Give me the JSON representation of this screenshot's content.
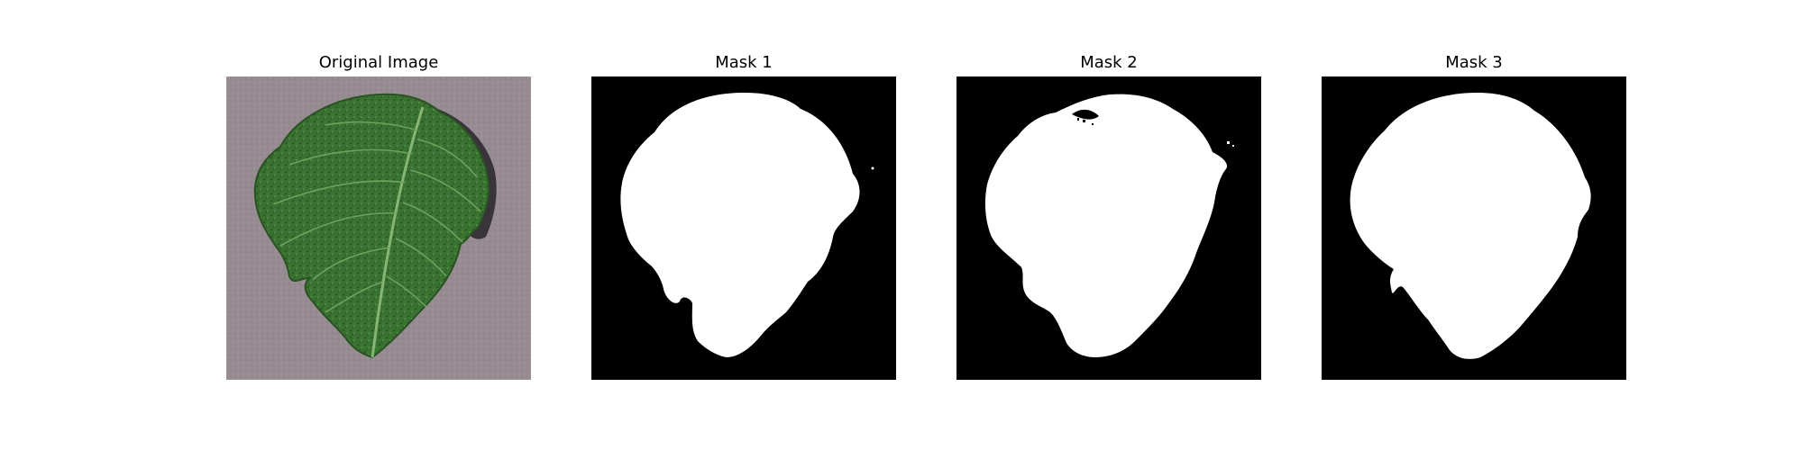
{
  "figure": {
    "panels": [
      {
        "title": "Original Image",
        "kind": "photo",
        "depicts": "green-leaf-on-gray-background"
      },
      {
        "title": "Mask 1",
        "kind": "mask"
      },
      {
        "title": "Mask 2",
        "kind": "mask"
      },
      {
        "title": "Mask 3",
        "kind": "mask"
      }
    ]
  },
  "colors": {
    "background": "#ffffff",
    "title_text": "#000000",
    "mask_background": "#000000",
    "mask_foreground": "#ffffff",
    "photo_surface": "#948a90",
    "leaf_dark": "#2c5a26",
    "leaf_mid": "#3f7a35",
    "leaf_vein": "#7cae6a",
    "leaf_shadow": "#2e2a30"
  }
}
